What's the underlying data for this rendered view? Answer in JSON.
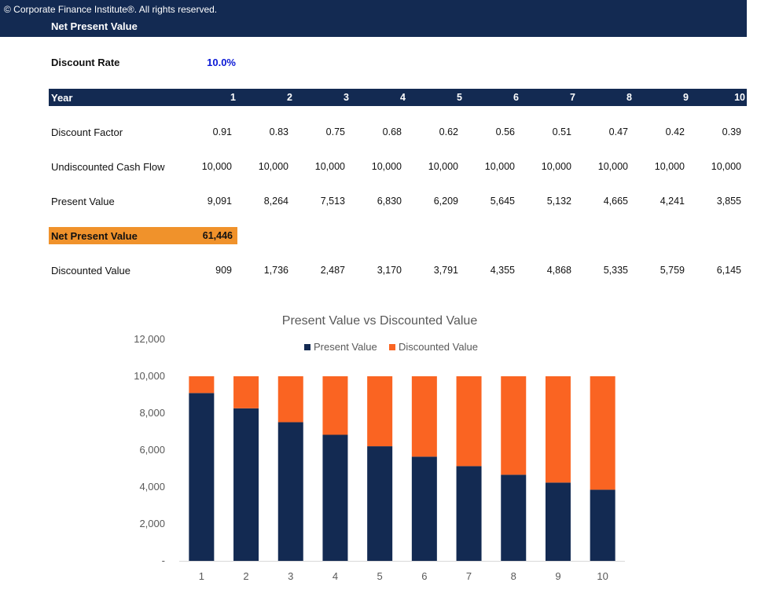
{
  "banner": {
    "copyright": "© Corporate Finance Institute®. All rights reserved.",
    "title": "Net Present Value"
  },
  "discount_rate": {
    "label": "Discount Rate",
    "value": "10.0%"
  },
  "table": {
    "header_label": "Year",
    "years": [
      "1",
      "2",
      "3",
      "4",
      "5",
      "6",
      "7",
      "8",
      "9",
      "10"
    ],
    "rows": [
      {
        "label": "Discount Factor",
        "values": [
          "0.91",
          "0.83",
          "0.75",
          "0.68",
          "0.62",
          "0.56",
          "0.51",
          "0.47",
          "0.42",
          "0.39"
        ]
      },
      {
        "label": "Undiscounted Cash Flow",
        "values": [
          "10,000",
          "10,000",
          "10,000",
          "10,000",
          "10,000",
          "10,000",
          "10,000",
          "10,000",
          "10,000",
          "10,000"
        ]
      },
      {
        "label": "Present Value",
        "values": [
          "9,091",
          "8,264",
          "7,513",
          "6,830",
          "6,209",
          "5,645",
          "5,132",
          "4,665",
          "4,241",
          "3,855"
        ]
      }
    ],
    "npv": {
      "label": "Net Present Value",
      "value": "61,446"
    },
    "discounted_row": {
      "label": "Discounted Value",
      "values": [
        "909",
        "1,736",
        "2,487",
        "3,170",
        "3,791",
        "4,355",
        "4,868",
        "5,335",
        "5,759",
        "6,145"
      ]
    }
  },
  "colors": {
    "navy": "#132a52",
    "orange": "#f0922b",
    "chart_orange": "#fa6422",
    "rate_blue": "#0b19d6"
  },
  "chart_data": {
    "type": "bar",
    "stacked": true,
    "title": "Present Value vs Discounted Value",
    "categories": [
      "1",
      "2",
      "3",
      "4",
      "5",
      "6",
      "7",
      "8",
      "9",
      "10"
    ],
    "series": [
      {
        "name": "Present Value",
        "color": "#132a52",
        "values": [
          9091,
          8264,
          7513,
          6830,
          6209,
          5645,
          5132,
          4665,
          4241,
          3855
        ]
      },
      {
        "name": "Discounted Value",
        "color": "#fa6422",
        "values": [
          909,
          1736,
          2487,
          3170,
          3791,
          4355,
          4868,
          5335,
          5759,
          6145
        ]
      }
    ],
    "ylim": [
      0,
      12000
    ],
    "yticks": [
      0,
      2000,
      4000,
      6000,
      8000,
      10000,
      12000
    ],
    "ytick_labels": [
      "-",
      "2,000",
      "4,000",
      "6,000",
      "8,000",
      "10,000",
      "12,000"
    ],
    "legend_position": "top-center",
    "xlabel": "",
    "ylabel": ""
  }
}
